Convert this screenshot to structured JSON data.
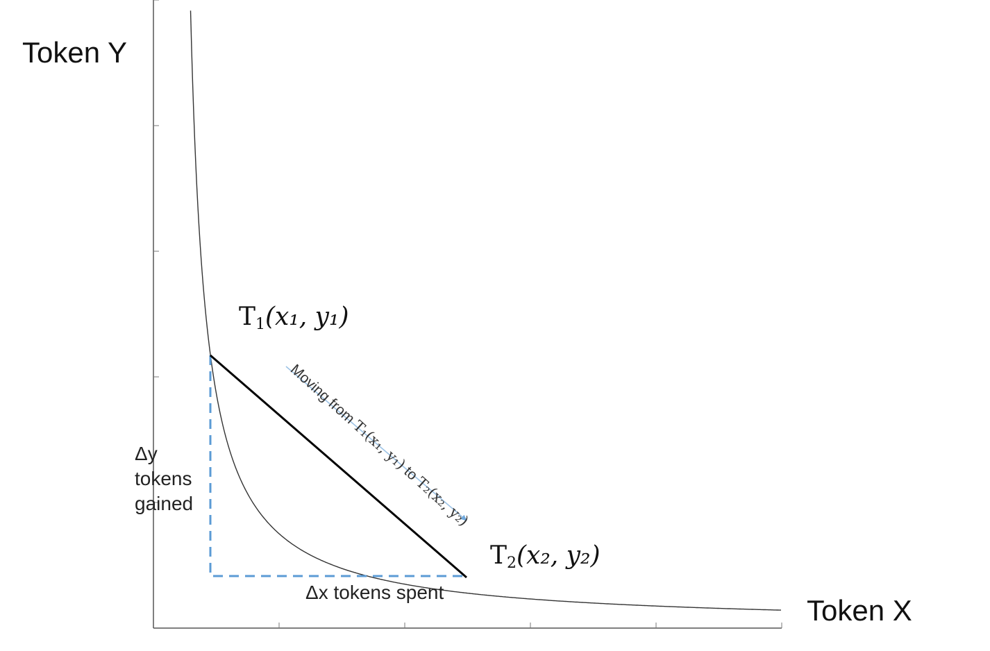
{
  "axes": {
    "y_label": "Token Y",
    "x_label": "Token X"
  },
  "point1": {
    "letter": "T",
    "index": "1",
    "coord": "(x₁, y₁)"
  },
  "point2": {
    "letter": "T",
    "index": "2",
    "coord": "(x₂, y₂)"
  },
  "annotations": {
    "dy_lines": [
      "Δy",
      "tokens",
      "gained"
    ],
    "dx": "Δx tokens spent",
    "move": {
      "prefix": "Moving from ",
      "from": "T₁(x₁, y₁)",
      "middle": " to ",
      "to": "T₂(x₂, y₂)"
    }
  },
  "colors": {
    "curve": "#333333",
    "chord": "#000000",
    "delta_dash": "#5b9bd5",
    "arrow": "#9dc3e6"
  }
}
